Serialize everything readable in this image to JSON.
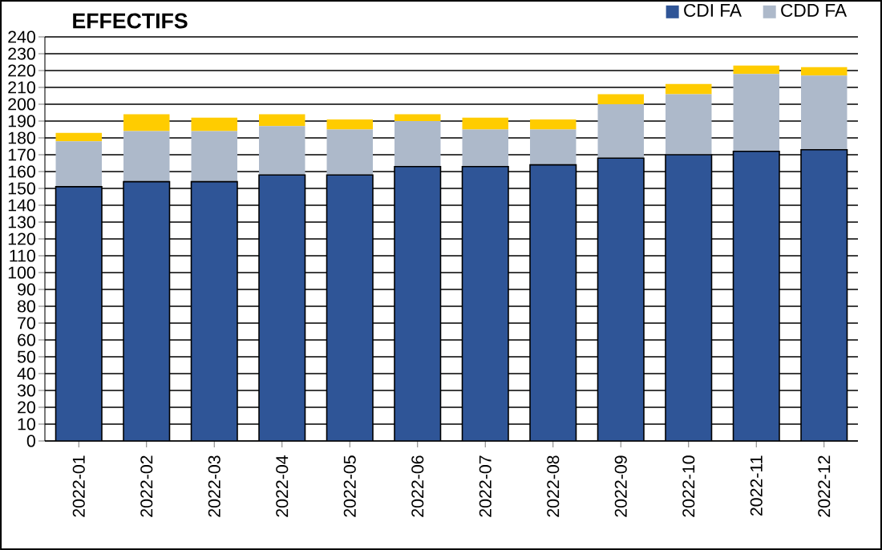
{
  "chart_data": {
    "type": "bar",
    "title": "EFFECTIFS",
    "stacked": true,
    "grid": "y",
    "legend": "top right",
    "categories": [
      "2022-01",
      "2022-02",
      "2022-03",
      "2022-04",
      "2022-05",
      "2022-06",
      "2022-07",
      "2022-08",
      "2022-09",
      "2022-10",
      "2022-11",
      "2022-12"
    ],
    "series": [
      {
        "name": "CDI FA",
        "color": "#2f5597",
        "values": [
          151,
          154,
          154,
          158,
          158,
          163,
          163,
          164,
          168,
          170,
          172,
          173
        ]
      },
      {
        "name": "CDD FA",
        "color": "#adb9ca",
        "values": [
          27,
          30,
          30,
          29,
          27,
          27,
          22,
          21,
          32,
          36,
          46,
          44
        ]
      },
      {
        "color": "#ffcc00",
        "values": [
          5,
          10,
          8,
          7,
          6,
          4,
          7,
          6,
          6,
          6,
          5,
          5
        ]
      }
    ],
    "ylim": [
      0,
      240
    ],
    "yticks": [
      0,
      10,
      20,
      30,
      40,
      50,
      60,
      70,
      80,
      90,
      100,
      110,
      120,
      130,
      140,
      150,
      160,
      170,
      180,
      190,
      200,
      210,
      220,
      230,
      240
    ]
  }
}
